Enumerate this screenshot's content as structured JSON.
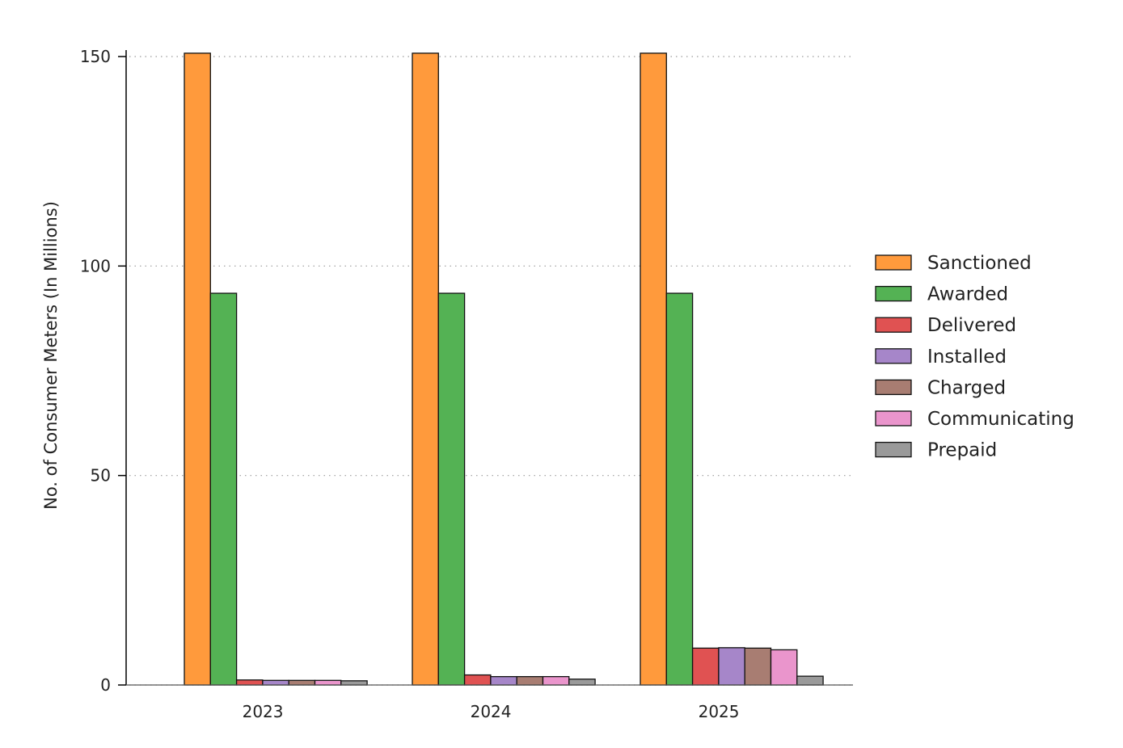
{
  "chart_data": {
    "type": "bar",
    "title": "",
    "xlabel": "",
    "ylabel": "No. of Consumer Meters (In Millions)",
    "categories": [
      "2023",
      "2024",
      "2025"
    ],
    "yticks": [
      "0",
      "50",
      "100",
      "150"
    ],
    "ylim": [
      0,
      150
    ],
    "grid": "horizontal-dotted",
    "legend_position": "right",
    "series": [
      {
        "name": "Sanctioned",
        "color": "#ff9a3c",
        "values": [
          150.8,
          150.8,
          150.8
        ]
      },
      {
        "name": "Awarded",
        "color": "#54b254",
        "values": [
          93.5,
          93.5,
          93.5
        ]
      },
      {
        "name": "Delivered",
        "color": "#e05252",
        "values": [
          1.2,
          2.4,
          8.8
        ]
      },
      {
        "name": "Installed",
        "color": "#a686c9",
        "values": [
          1.1,
          2.0,
          8.9
        ]
      },
      {
        "name": "Charged",
        "color": "#a87d72",
        "values": [
          1.1,
          2.0,
          8.8
        ]
      },
      {
        "name": "Communicating",
        "color": "#ea95cc",
        "values": [
          1.1,
          2.0,
          8.4
        ]
      },
      {
        "name": "Prepaid",
        "color": "#9a9a9a",
        "values": [
          1.0,
          1.4,
          2.1
        ]
      }
    ]
  }
}
